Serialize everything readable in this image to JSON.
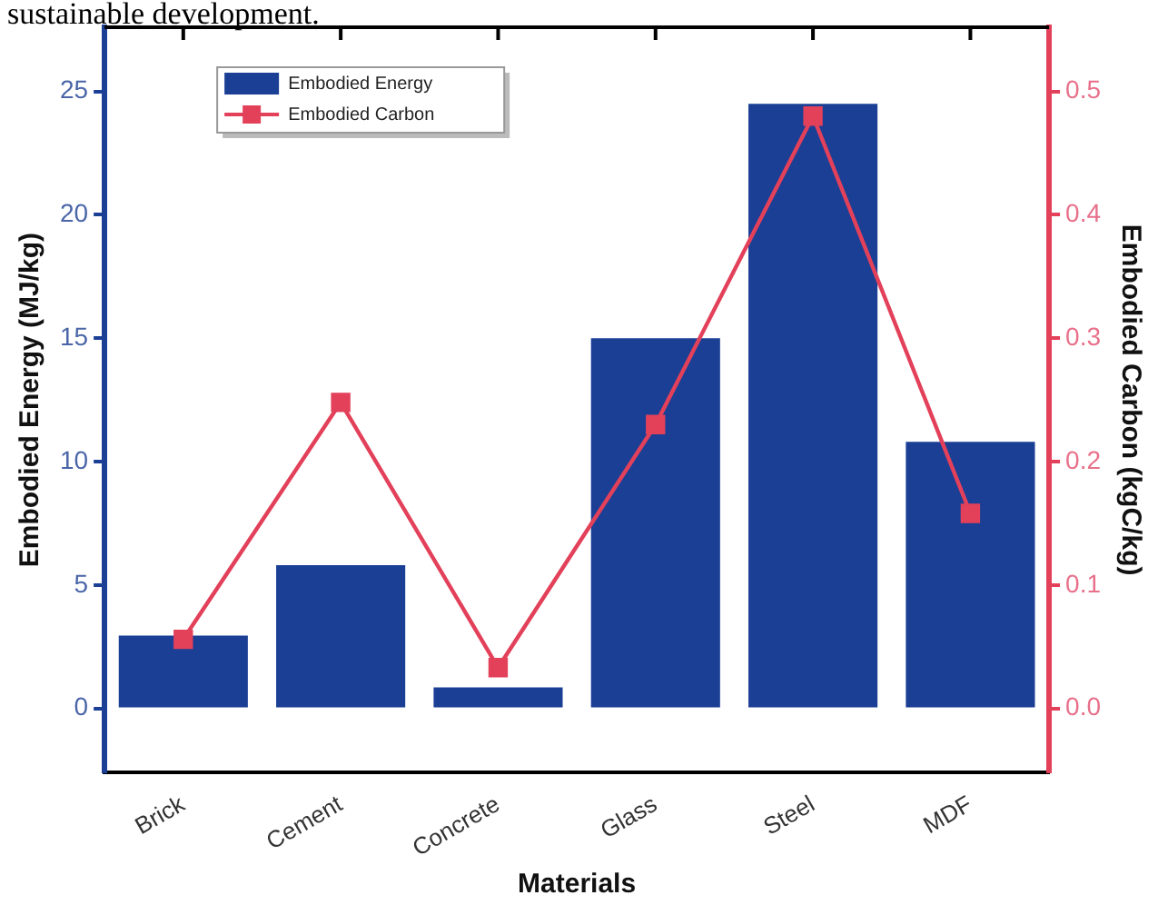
{
  "chart_data": {
    "type": "bar",
    "xlabel": "Materials",
    "ylabel": "Embodied Energy (MJ/kg)",
    "y2label": "Embodied Carbon (kgC/kg)",
    "annotations": [
      "sustainable development."
    ],
    "categories": [
      "Brick",
      "Cement",
      "Concrete",
      "Glass",
      "Steel",
      "MDF"
    ],
    "series": [
      {
        "name": "Embodied Energy",
        "color": "#1b3f95",
        "values": [
          2.95,
          5.8,
          0.85,
          15,
          24.5,
          10.8
        ]
      },
      {
        "name": "Embodied Carbon",
        "type": "line",
        "axis": "y2",
        "color": "#e3405a",
        "marker": "square",
        "values": [
          0.056,
          0.248,
          0.033,
          0.23,
          0.48,
          0.158
        ]
      }
    ],
    "ylim": [
      -2.6,
      27.6
    ],
    "yticks": [
      0,
      5,
      10,
      15,
      20,
      25
    ],
    "y2lim": [
      -0.052,
      0.552
    ],
    "y2ticks": [
      {
        "value": 0,
        "label": "0.0"
      },
      0.1,
      0.2,
      0.3,
      0.4,
      0.5
    ],
    "grid": false,
    "legend": "top left"
  }
}
